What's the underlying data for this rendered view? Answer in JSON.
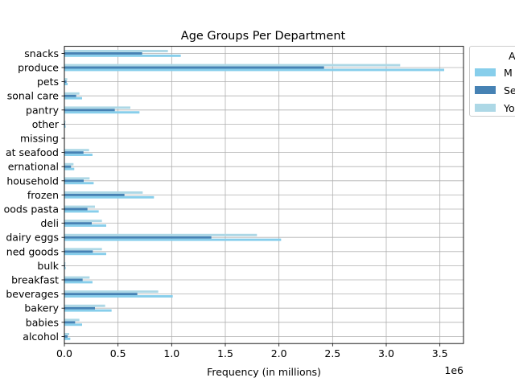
{
  "chart_data": {
    "type": "bar",
    "orientation": "horizontal",
    "title": "Age Groups Per Department",
    "xlabel": "Frequency (in millions)",
    "ylabel": "",
    "x_offset_label": "1e6",
    "xlim": [
      0,
      3720000
    ],
    "x_ticks": [
      0,
      500000,
      1000000,
      1500000,
      2000000,
      2500000,
      3000000,
      3500000
    ],
    "x_tick_labels": [
      "0.0",
      "0.5",
      "1.0",
      "1.5",
      "2.0",
      "2.5",
      "3.0",
      "3.5"
    ],
    "grid": true,
    "legend_position": "outside upper right",
    "legend_title": "A",
    "categories": [
      "alcohol",
      "babies",
      "bakery",
      "beverages",
      "breakfast",
      "bulk",
      "canned goods",
      "dairy eggs",
      "deli",
      "dry goods pasta",
      "frozen",
      "household",
      "international",
      "meat seafood",
      "missing",
      "other",
      "pantry",
      "personal care",
      "pets",
      "produce",
      "snacks"
    ],
    "category_labels": [
      "alcohol",
      "babies",
      "bakery",
      "beverages",
      "breakfast",
      "bulk",
      "ned goods",
      "dairy eggs",
      "deli",
      "oods pasta",
      "frozen",
      "household",
      "ernational",
      "at seafood",
      "missing",
      "other",
      "pantry",
      "sonal care",
      "pets",
      "produce",
      "snacks"
    ],
    "series": [
      {
        "name": "M",
        "color": "#87ceeb",
        "values": [
          55000,
          165000,
          440000,
          1010000,
          262000,
          12000,
          390000,
          2020000,
          390000,
          320000,
          835000,
          273000,
          92000,
          262000,
          2000,
          12000,
          700000,
          165000,
          30000,
          3540000,
          1085000
        ]
      },
      {
        "name": "Se",
        "color": "#4682b4",
        "values": [
          30000,
          100000,
          285000,
          680000,
          170000,
          7000,
          265000,
          1370000,
          255000,
          215000,
          560000,
          180000,
          62000,
          178000,
          1000,
          7000,
          470000,
          110000,
          20000,
          2420000,
          725000
        ]
      },
      {
        "name": "Yo",
        "color": "#add8e6",
        "values": [
          45000,
          140000,
          380000,
          875000,
          235000,
          10000,
          350000,
          1795000,
          350000,
          285000,
          730000,
          235000,
          85000,
          230000,
          2000,
          10000,
          615000,
          140000,
          27000,
          3130000,
          965000
        ]
      }
    ]
  }
}
